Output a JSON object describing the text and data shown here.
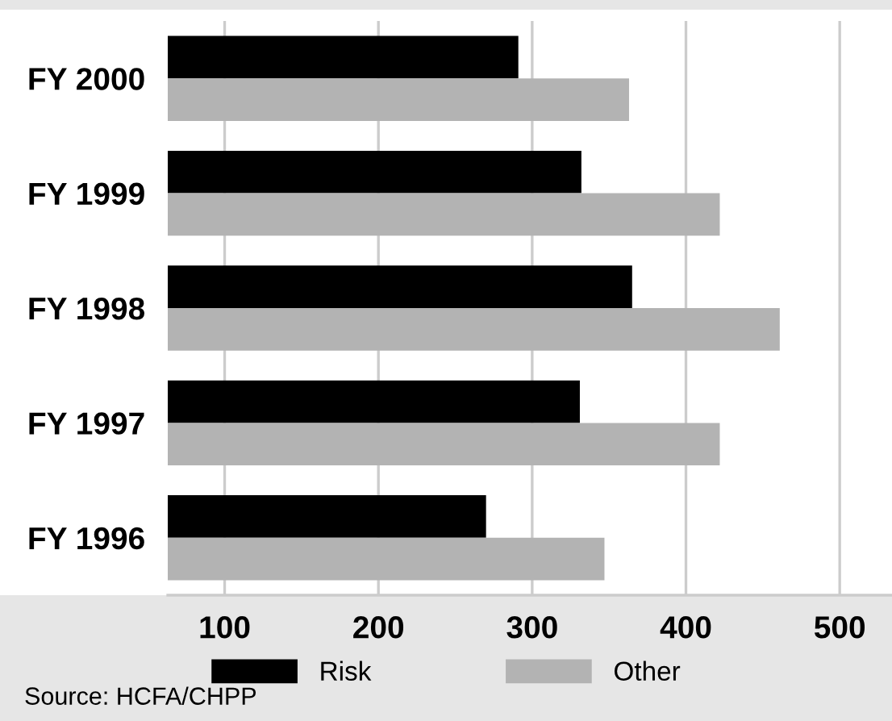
{
  "chart_data": {
    "type": "bar",
    "orientation": "horizontal",
    "categories": [
      "FY 2000",
      "FY 1999",
      "FY 1998",
      "FY 1997",
      "FY 1996"
    ],
    "series": [
      {
        "name": "Risk",
        "color": "#000000",
        "values": [
          291,
          332,
          365,
          331,
          270
        ]
      },
      {
        "name": "Other",
        "color": "#b3b3b3",
        "values": [
          363,
          422,
          461,
          422,
          347
        ]
      }
    ],
    "xlim": [
      63,
      534
    ],
    "xticks": [
      100,
      200,
      300,
      400,
      500
    ],
    "grid": "x",
    "legend": "bottom",
    "annotations": [
      "Source: HCFA/CHPP"
    ]
  }
}
